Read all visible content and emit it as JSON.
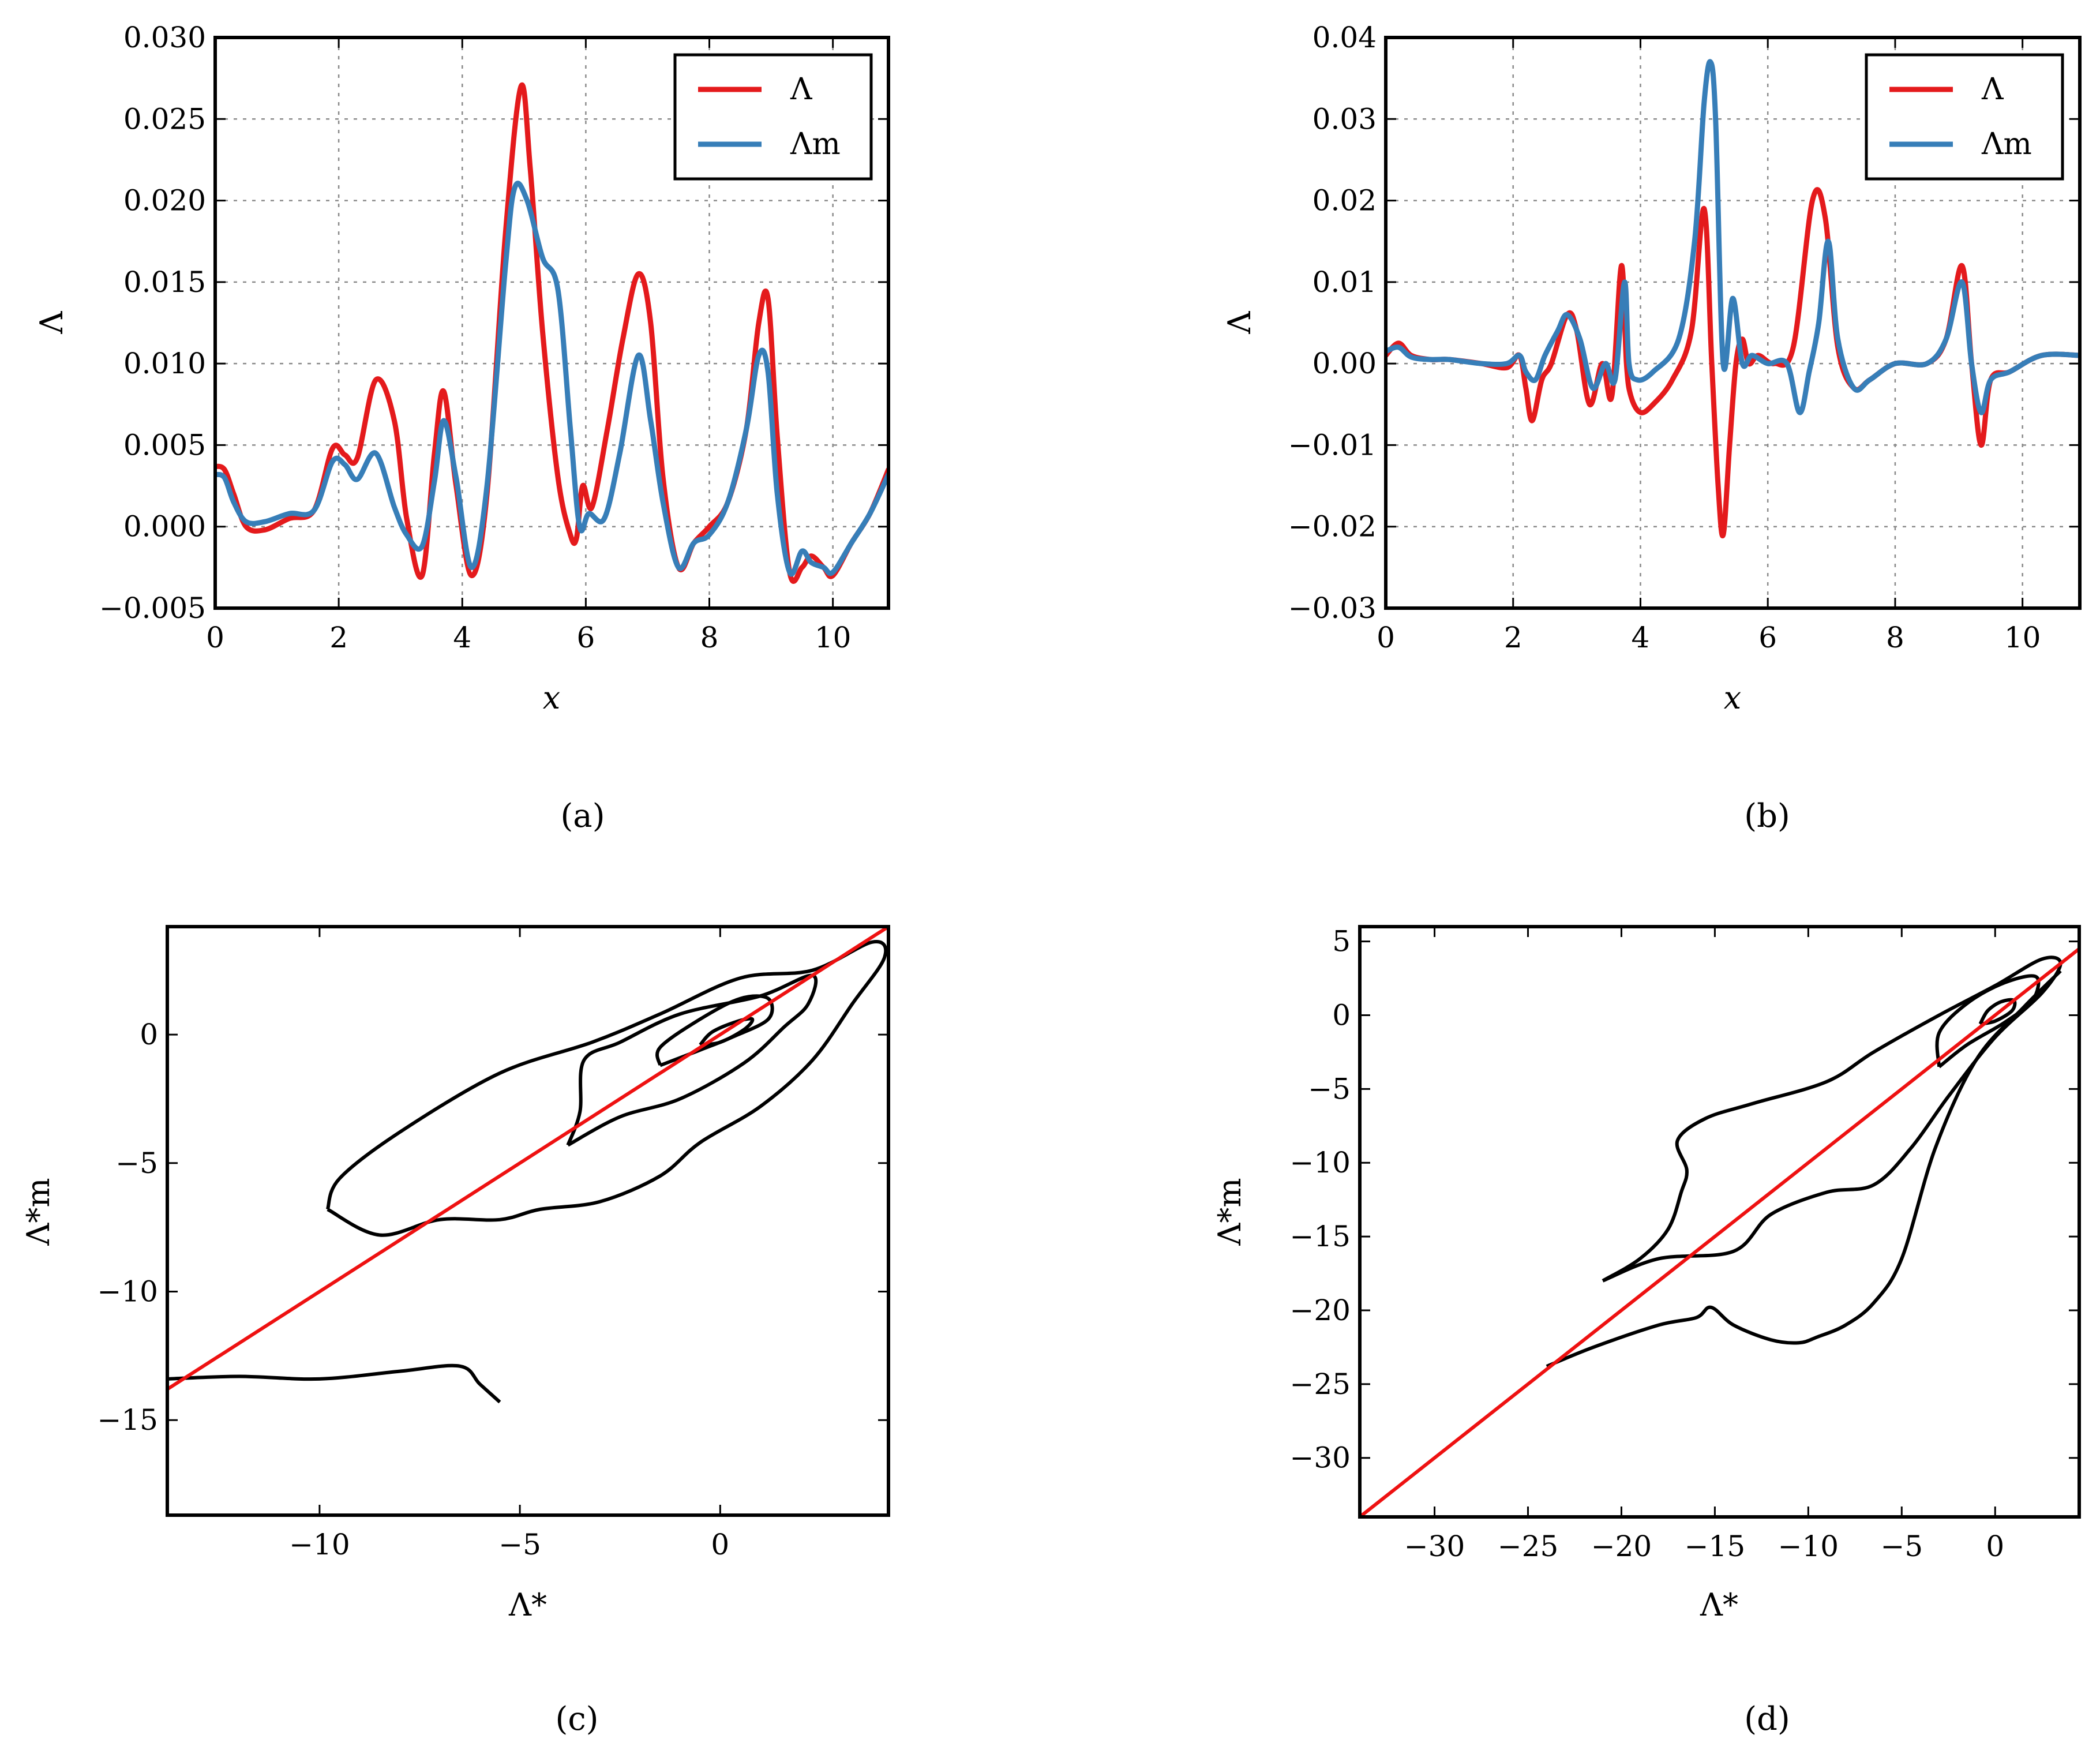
{
  "colors": {
    "lambda": "#e41a1c",
    "lambda_m": "#377eb8",
    "contour": "#000000",
    "identity_line": "#ee1111"
  },
  "chart_data": [
    {
      "id": "a",
      "type": "line",
      "panel_label": "(a)",
      "xlabel": "x",
      "ylabel": "Λ",
      "xlim": [
        0,
        10.9
      ],
      "ylim": [
        -0.005,
        0.03
      ],
      "xticks": [
        0,
        2,
        4,
        6,
        8,
        10
      ],
      "xtick_labels": [
        "0",
        "2",
        "4",
        "6",
        "8",
        "10"
      ],
      "yticks": [
        -0.005,
        0,
        0.005,
        0.01,
        0.015,
        0.02,
        0.025,
        0.03
      ],
      "ytick_labels": [
        "−0.005",
        "0.000",
        "0.005",
        "0.010",
        "0.015",
        "0.020",
        "0.025",
        "0.030"
      ],
      "grid": true,
      "legend_position": "top-right",
      "series": [
        {
          "name": "Λ",
          "color": "#e41a1c",
          "x": [
            0,
            0.15,
            0.3,
            0.5,
            0.8,
            1.2,
            1.6,
            1.9,
            2.1,
            2.3,
            2.6,
            2.9,
            3.1,
            3.35,
            3.55,
            3.7,
            3.9,
            4.15,
            4.4,
            4.7,
            4.95,
            5.1,
            5.3,
            5.55,
            5.75,
            5.85,
            5.95,
            6.1,
            6.35,
            6.6,
            6.85,
            7.05,
            7.25,
            7.5,
            7.75,
            8.0,
            8.3,
            8.6,
            8.8,
            8.95,
            9.1,
            9.3,
            9.5,
            9.65,
            9.85,
            10.0,
            10.3,
            10.6,
            10.9
          ],
          "y": [
            0.0037,
            0.0035,
            0.002,
            0.0,
            -0.0002,
            0.0005,
            0.001,
            0.0048,
            0.0044,
            0.0042,
            0.009,
            0.0065,
            0.0005,
            -0.003,
            0.0045,
            0.0083,
            0.0025,
            -0.003,
            0.002,
            0.018,
            0.027,
            0.022,
            0.012,
            0.003,
            -0.0005,
            -0.0007,
            0.0025,
            0.0012,
            0.006,
            0.0115,
            0.0155,
            0.0125,
            0.003,
            -0.0025,
            -0.001,
            0.0,
            0.0015,
            0.006,
            0.0125,
            0.014,
            0.0055,
            -0.0028,
            -0.0025,
            -0.0018,
            -0.0025,
            -0.003,
            -0.001,
            0.0008,
            0.0035
          ]
        },
        {
          "name": "Λm",
          "color": "#377eb8",
          "x": [
            0,
            0.15,
            0.3,
            0.5,
            0.8,
            1.2,
            1.6,
            1.9,
            2.1,
            2.3,
            2.6,
            2.9,
            3.1,
            3.35,
            3.55,
            3.7,
            3.9,
            4.15,
            4.4,
            4.7,
            4.85,
            5.05,
            5.3,
            5.55,
            5.75,
            5.9,
            6.05,
            6.3,
            6.55,
            6.85,
            7.05,
            7.25,
            7.5,
            7.75,
            8.0,
            8.3,
            8.6,
            8.8,
            8.95,
            9.1,
            9.3,
            9.5,
            9.65,
            9.85,
            10.0,
            10.3,
            10.6,
            10.9
          ],
          "y": [
            0.0032,
            0.003,
            0.0015,
            0.0003,
            0.0003,
            0.0008,
            0.001,
            0.004,
            0.0038,
            0.0029,
            0.0045,
            0.0012,
            -0.0005,
            -0.0012,
            0.0028,
            0.0065,
            0.003,
            -0.0025,
            0.0025,
            0.016,
            0.0208,
            0.02,
            0.0165,
            0.0145,
            0.006,
            0.0,
            0.0008,
            0.0005,
            0.0045,
            0.0105,
            0.0065,
            0.0015,
            -0.0025,
            -0.001,
            -0.0005,
            0.0015,
            0.006,
            0.0105,
            0.0095,
            0.002,
            -0.0028,
            -0.0015,
            -0.0022,
            -0.0025,
            -0.0028,
            -0.001,
            0.0008,
            0.0032
          ]
        }
      ]
    },
    {
      "id": "b",
      "type": "line",
      "panel_label": "(b)",
      "xlabel": "x",
      "ylabel": "Λ",
      "xlim": [
        0,
        10.9
      ],
      "ylim": [
        -0.03,
        0.04
      ],
      "xticks": [
        0,
        2,
        4,
        6,
        8,
        10
      ],
      "xtick_labels": [
        "0",
        "2",
        "4",
        "6",
        "8",
        "10"
      ],
      "yticks": [
        -0.03,
        -0.02,
        -0.01,
        0,
        0.01,
        0.02,
        0.03,
        0.04
      ],
      "ytick_labels": [
        "−0.03",
        "−0.02",
        "−0.01",
        "0.00",
        "0.01",
        "0.02",
        "0.03",
        "0.04"
      ],
      "grid": true,
      "legend_position": "top-right",
      "series": [
        {
          "name": "Λ",
          "color": "#e41a1c",
          "x": [
            0,
            0.2,
            0.4,
            0.7,
            1.0,
            1.5,
            1.9,
            2.1,
            2.2,
            2.3,
            2.45,
            2.6,
            2.85,
            3.0,
            3.2,
            3.4,
            3.55,
            3.7,
            3.78,
            3.85,
            4.0,
            4.2,
            4.5,
            4.8,
            5.0,
            5.12,
            5.22,
            5.3,
            5.4,
            5.5,
            5.6,
            5.7,
            5.85,
            6.1,
            6.4,
            6.7,
            6.9,
            7.1,
            7.35,
            7.6,
            8.0,
            8.5,
            8.8,
            9.05,
            9.2,
            9.35,
            9.5,
            9.8,
            10.3,
            10.9
          ],
          "y": [
            0.001,
            0.0025,
            0.001,
            0.0005,
            0.0005,
            0.0,
            -0.0005,
            0.001,
            -0.003,
            -0.007,
            -0.002,
            0.0,
            0.006,
            0.004,
            -0.005,
            0.0,
            -0.004,
            0.012,
            0.0,
            -0.004,
            -0.006,
            -0.005,
            -0.002,
            0.004,
            0.019,
            0.0,
            -0.015,
            -0.021,
            -0.01,
            0.0,
            0.003,
            0.0,
            0.001,
            0.0,
            0.002,
            0.02,
            0.018,
            0.002,
            -0.003,
            -0.002,
            0.0,
            0.0,
            0.003,
            0.012,
            0.0,
            -0.01,
            -0.002,
            -0.001,
            0.001,
            0.001
          ]
        },
        {
          "name": "Λm",
          "color": "#377eb8",
          "x": [
            0,
            0.2,
            0.4,
            0.7,
            1.0,
            1.5,
            1.9,
            2.1,
            2.2,
            2.35,
            2.5,
            2.7,
            2.85,
            3.05,
            3.25,
            3.45,
            3.6,
            3.75,
            3.82,
            3.95,
            4.2,
            4.6,
            4.85,
            5.0,
            5.1,
            5.18,
            5.3,
            5.45,
            5.6,
            5.75,
            6.0,
            6.3,
            6.5,
            6.65,
            6.8,
            6.95,
            7.1,
            7.35,
            7.6,
            8.0,
            8.5,
            8.8,
            9.05,
            9.2,
            9.35,
            9.5,
            9.8,
            10.3,
            10.9
          ],
          "y": [
            0.0015,
            0.002,
            0.0008,
            0.0005,
            0.0005,
            0.0,
            0.0,
            0.001,
            -0.001,
            -0.002,
            0.001,
            0.004,
            0.006,
            0.003,
            -0.003,
            0.0,
            -0.002,
            0.01,
            0.0,
            -0.002,
            -0.001,
            0.003,
            0.015,
            0.032,
            0.037,
            0.03,
            0.0,
            0.008,
            0.0,
            0.001,
            0.0,
            0.0,
            -0.006,
            -0.001,
            0.005,
            0.015,
            0.003,
            -0.003,
            -0.002,
            0.0,
            0.0,
            0.003,
            0.01,
            0.0,
            -0.006,
            -0.002,
            -0.001,
            0.001,
            0.001
          ]
        }
      ]
    },
    {
      "id": "c",
      "type": "contour",
      "panel_label": "(c)",
      "xlabel": "Λ*",
      "ylabel": "Λ*m",
      "xlim": [
        -13.8,
        4.2
      ],
      "ylim": [
        -18.7,
        4.2
      ],
      "xticks": [
        -10,
        -5,
        0
      ],
      "xtick_labels": [
        "−10",
        "−5",
        "0"
      ],
      "yticks": [
        -15,
        -10,
        -5,
        0
      ],
      "ytick_labels": [
        "−15",
        "−10",
        "−5",
        "0"
      ],
      "grid": false,
      "identity_line": {
        "from": [
          -13.8,
          -13.8
        ],
        "to": [
          4.2,
          4.2
        ],
        "color": "#ee1111"
      },
      "contours": [
        {
          "level": "inner",
          "points": [
            [
              -0.5,
              -0.4
            ],
            [
              0.0,
              -0.3
            ],
            [
              0.6,
              0.2
            ],
            [
              0.8,
              0.6
            ],
            [
              0.4,
              0.5
            ],
            [
              -0.2,
              0.1
            ],
            [
              -0.5,
              -0.4
            ]
          ]
        },
        {
          "level": "mid",
          "points": [
            [
              -1.5,
              -1.2
            ],
            [
              -0.5,
              -0.6
            ],
            [
              0.3,
              -0.1
            ],
            [
              1.2,
              0.6
            ],
            [
              1.2,
              1.4
            ],
            [
              0.5,
              1.4
            ],
            [
              -0.5,
              0.6
            ],
            [
              -1.5,
              -0.5
            ],
            [
              -1.5,
              -1.2
            ]
          ]
        },
        {
          "level": "outer",
          "points": [
            [
              -3.8,
              -4.3
            ],
            [
              -2.5,
              -3.2
            ],
            [
              -1.0,
              -2.5
            ],
            [
              0.6,
              -1.1
            ],
            [
              1.6,
              0.3
            ],
            [
              2.2,
              1.2
            ],
            [
              2.3,
              2.3
            ],
            [
              1.0,
              1.5
            ],
            [
              -1.0,
              0.8
            ],
            [
              -2.5,
              -0.3
            ],
            [
              -3.4,
              -1.0
            ],
            [
              -3.5,
              -3.0
            ],
            [
              -3.8,
              -4.3
            ]
          ]
        },
        {
          "level": "outermost",
          "points": [
            [
              -9.8,
              -6.8
            ],
            [
              -8.5,
              -7.8
            ],
            [
              -7.0,
              -7.2
            ],
            [
              -5.5,
              -7.2
            ],
            [
              -4.5,
              -6.8
            ],
            [
              -3.0,
              -6.5
            ],
            [
              -1.5,
              -5.5
            ],
            [
              -0.5,
              -4.2
            ],
            [
              1.0,
              -2.8
            ],
            [
              2.3,
              -1.0
            ],
            [
              3.3,
              1.2
            ],
            [
              4.1,
              3.0
            ],
            [
              3.8,
              3.6
            ],
            [
              2.3,
              2.5
            ],
            [
              0.5,
              2.2
            ],
            [
              -1.5,
              0.8
            ],
            [
              -3.2,
              -0.3
            ],
            [
              -5.5,
              -1.5
            ],
            [
              -8.0,
              -3.8
            ],
            [
              -9.5,
              -5.6
            ],
            [
              -9.8,
              -6.8
            ]
          ]
        },
        {
          "level": "tail",
          "points": [
            [
              -13.8,
              -13.4
            ],
            [
              -12.0,
              -13.3
            ],
            [
              -10.0,
              -13.4
            ],
            [
              -8.0,
              -13.1
            ],
            [
              -6.5,
              -12.9
            ],
            [
              -6.0,
              -13.6
            ],
            [
              -5.5,
              -14.3
            ]
          ]
        }
      ]
    },
    {
      "id": "d",
      "type": "contour",
      "panel_label": "(d)",
      "xlabel": "Λ*",
      "ylabel": "Λ*m",
      "xlim": [
        -34,
        4.5
      ],
      "ylim": [
        -34,
        6
      ],
      "xticks": [
        -30,
        -25,
        -20,
        -15,
        -10,
        -5,
        0
      ],
      "xtick_labels": [
        "−30",
        "−25",
        "−20",
        "−15",
        "−10",
        "−5",
        "0"
      ],
      "yticks": [
        -30,
        -25,
        -20,
        -15,
        -10,
        -5,
        0,
        5
      ],
      "ytick_labels": [
        "−30",
        "−25",
        "−20",
        "−15",
        "−10",
        "−5",
        "0",
        "5"
      ],
      "grid": false,
      "identity_line": {
        "from": [
          -34,
          -34
        ],
        "to": [
          4.5,
          4.5
        ],
        "color": "#ee1111"
      },
      "contours": [
        {
          "level": "inner",
          "points": [
            [
              -0.8,
              -0.6
            ],
            [
              0.0,
              -0.4
            ],
            [
              0.9,
              0.3
            ],
            [
              1.0,
              1.0
            ],
            [
              0.3,
              0.9
            ],
            [
              -0.4,
              0.3
            ],
            [
              -0.8,
              -0.6
            ]
          ]
        },
        {
          "level": "mid",
          "points": [
            [
              -3.0,
              -3.5
            ],
            [
              -1.5,
              -2.0
            ],
            [
              0.5,
              -0.5
            ],
            [
              2.0,
              1.0
            ],
            [
              2.2,
              2.6
            ],
            [
              0.5,
              2.2
            ],
            [
              -1.5,
              0.8
            ],
            [
              -3.0,
              -1.2
            ],
            [
              -3.0,
              -3.5
            ]
          ]
        },
        {
          "level": "outer",
          "points": [
            [
              -21.0,
              -18.0
            ],
            [
              -18.0,
              -16.5
            ],
            [
              -14.0,
              -16.0
            ],
            [
              -12.0,
              -13.5
            ],
            [
              -9.0,
              -12.0
            ],
            [
              -6.5,
              -11.5
            ],
            [
              -4.5,
              -9.0
            ],
            [
              -2.5,
              -5.5
            ],
            [
              0.0,
              -1.5
            ],
            [
              2.5,
              1.5
            ],
            [
              3.5,
              3.5
            ],
            [
              2.5,
              3.8
            ],
            [
              0.0,
              2.0
            ],
            [
              -3.0,
              0.0
            ],
            [
              -6.5,
              -2.5
            ],
            [
              -9.0,
              -4.5
            ],
            [
              -13.0,
              -6.0
            ],
            [
              -15.5,
              -7.0
            ],
            [
              -17.0,
              -8.5
            ],
            [
              -16.5,
              -10.5
            ],
            [
              -16.8,
              -12.0
            ],
            [
              -17.5,
              -14.5
            ],
            [
              -19.0,
              -16.5
            ],
            [
              -21.0,
              -18.0
            ]
          ]
        },
        {
          "level": "outermost",
          "points": [
            [
              -24.0,
              -23.8
            ],
            [
              -21.5,
              -22.5
            ],
            [
              -18.0,
              -21.0
            ],
            [
              -16.0,
              -20.5
            ],
            [
              -15.2,
              -19.8
            ],
            [
              -14.0,
              -21.0
            ],
            [
              -12.0,
              -22.0
            ],
            [
              -10.5,
              -22.2
            ],
            [
              -9.5,
              -21.8
            ],
            [
              -8.0,
              -21.0
            ],
            [
              -6.5,
              -19.5
            ],
            [
              -5.0,
              -16.5
            ],
            [
              -3.2,
              -9.0
            ],
            [
              -1.0,
              -3.0
            ],
            [
              1.5,
              0.5
            ],
            [
              3.5,
              3.0
            ]
          ]
        }
      ]
    }
  ]
}
